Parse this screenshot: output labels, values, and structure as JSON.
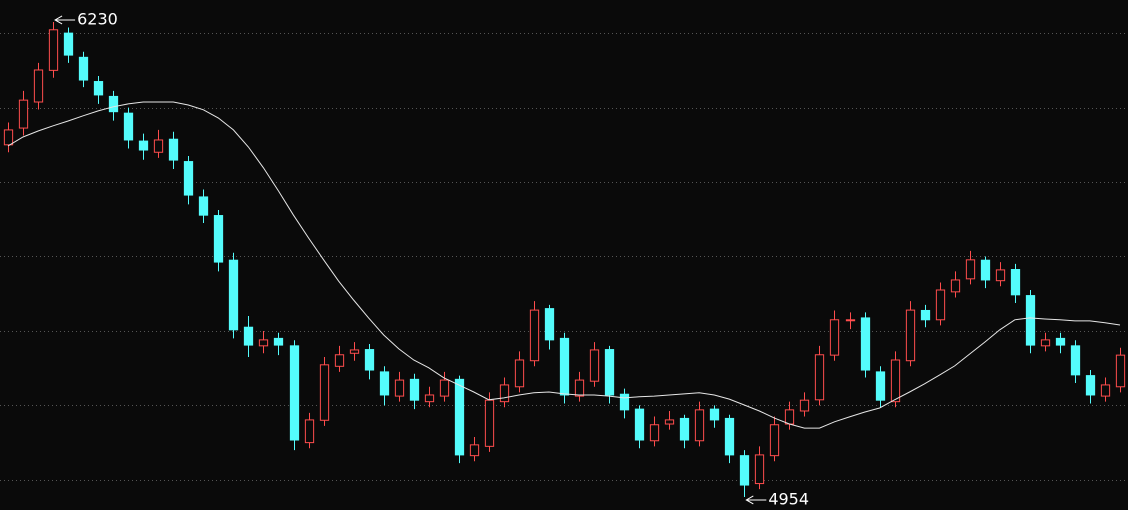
{
  "chart_data": {
    "type": "candlestick",
    "ylim": [
      4919,
      6289
    ],
    "grid_lines": [
      5000,
      5200,
      5400,
      5600,
      5800,
      6000,
      6200
    ],
    "grid": true,
    "up_color": "#ff4d4d",
    "down_color": "#54fcfc",
    "open": [
      5900,
      5945,
      6015,
      6100,
      6200,
      6135,
      6070,
      6030,
      5985,
      5910,
      5880,
      5915,
      5855,
      5760,
      5710,
      5590,
      5410,
      5360,
      5380,
      5360,
      5100,
      5160,
      5305,
      5340,
      5350,
      5290,
      5225,
      5270,
      5210,
      5225,
      5270,
      5065,
      5090,
      5210,
      5250,
      5320,
      5460,
      5380,
      5225,
      5265,
      5350,
      5230,
      5190,
      5105,
      5150,
      5165,
      5105,
      5190,
      5165,
      5065,
      4990,
      5065,
      5150,
      5185,
      5215,
      5335,
      5430,
      5435,
      5290,
      5210,
      5320,
      5455,
      5430,
      5505,
      5540,
      5590,
      5535,
      5565,
      5495,
      5360,
      5380,
      5360,
      5280,
      5225,
      5250
    ],
    "high": [
      5960,
      6045,
      6120,
      6230,
      6215,
      6150,
      6085,
      6045,
      6000,
      5930,
      5940,
      5935,
      5870,
      5780,
      5725,
      5610,
      5440,
      5400,
      5395,
      5375,
      5180,
      5330,
      5360,
      5370,
      5365,
      5305,
      5290,
      5285,
      5250,
      5290,
      5280,
      5115,
      5235,
      5275,
      5345,
      5480,
      5470,
      5395,
      5290,
      5370,
      5360,
      5245,
      5200,
      5170,
      5185,
      5175,
      5210,
      5200,
      5175,
      5080,
      5090,
      5170,
      5210,
      5235,
      5360,
      5455,
      5450,
      5450,
      5305,
      5345,
      5480,
      5470,
      5530,
      5560,
      5615,
      5600,
      5585,
      5580,
      5510,
      5395,
      5395,
      5375,
      5295,
      5275,
      5355
    ],
    "low": [
      5880,
      5925,
      5995,
      6080,
      6120,
      6055,
      6010,
      5965,
      5890,
      5860,
      5865,
      5835,
      5740,
      5690,
      5560,
      5380,
      5330,
      5340,
      5335,
      5080,
      5085,
      5145,
      5290,
      5320,
      5270,
      5200,
      5210,
      5190,
      5195,
      5210,
      5045,
      5050,
      5075,
      5195,
      5235,
      5305,
      5350,
      5205,
      5210,
      5250,
      5205,
      5165,
      5085,
      5090,
      5135,
      5085,
      5090,
      5140,
      5045,
      4954,
      4975,
      5050,
      5135,
      5170,
      5200,
      5320,
      5405,
      5275,
      5195,
      5195,
      5305,
      5410,
      5415,
      5490,
      5525,
      5515,
      5520,
      5475,
      5340,
      5345,
      5340,
      5260,
      5205,
      5210,
      5235
    ],
    "close": [
      5940,
      6020,
      6101,
      6209,
      6141,
      6074,
      6034,
      5989,
      5913,
      5886,
      5913,
      5859,
      5765,
      5711,
      5585,
      5403,
      5362,
      5376,
      5362,
      5107,
      5161,
      5309,
      5336,
      5349,
      5295,
      5228,
      5268,
      5214,
      5228,
      5268,
      5067,
      5094,
      5214,
      5255,
      5322,
      5456,
      5376,
      5228,
      5268,
      5349,
      5228,
      5188,
      5107,
      5148,
      5161,
      5107,
      5188,
      5161,
      5067,
      4986,
      5067,
      5148,
      5188,
      5214,
      5336,
      5430,
      5430,
      5295,
      5214,
      5322,
      5456,
      5430,
      5510,
      5537,
      5591,
      5537,
      5564,
      5497,
      5362,
      5376,
      5362,
      5282,
      5228,
      5255,
      5335
    ],
    "ma": {
      "color": "#e6e6e6",
      "values": [
        5897,
        5921,
        5937,
        5951,
        5964,
        5978,
        5991,
        6002,
        6010,
        6015,
        6015,
        6015,
        6007,
        5994,
        5972,
        5940,
        5894,
        5838,
        5776,
        5711,
        5650,
        5591,
        5534,
        5483,
        5435,
        5389,
        5352,
        5322,
        5301,
        5274,
        5255,
        5236,
        5215,
        5220,
        5228,
        5234,
        5236,
        5231,
        5228,
        5228,
        5225,
        5220,
        5223,
        5225,
        5228,
        5231,
        5234,
        5228,
        5217,
        5201,
        5185,
        5166,
        5150,
        5139,
        5139,
        5156,
        5169,
        5182,
        5193,
        5215,
        5236,
        5258,
        5282,
        5306,
        5338,
        5370,
        5403,
        5430,
        5435,
        5432,
        5430,
        5427,
        5427,
        5422,
        5416
      ]
    },
    "annotations": [
      {
        "value": 6230,
        "index": 3,
        "at": "high"
      },
      {
        "value": 4954,
        "index": 49,
        "at": "low"
      }
    ]
  }
}
